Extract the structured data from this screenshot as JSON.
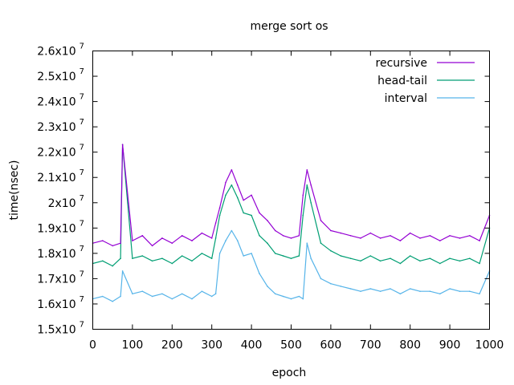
{
  "chart_data": {
    "type": "line",
    "title": "merge sort os",
    "xlabel": "epoch",
    "ylabel": "time(nsec)",
    "xlim": [
      0,
      1000
    ],
    "ylim": [
      15000000,
      26000000
    ],
    "grid": false,
    "legend_position": "top-right",
    "x_ticks": [
      "0",
      "100",
      "200",
      "300",
      "400",
      "500",
      "600",
      "700",
      "800",
      "900",
      "1000"
    ],
    "y_ticks": [
      {
        "mantissa": "1.5x10",
        "exp": "7",
        "value": 15000000
      },
      {
        "mantissa": "1.6x10",
        "exp": "7",
        "value": 16000000
      },
      {
        "mantissa": "1.7x10",
        "exp": "7",
        "value": 17000000
      },
      {
        "mantissa": "1.8x10",
        "exp": "7",
        "value": 18000000
      },
      {
        "mantissa": "1.9x10",
        "exp": "7",
        "value": 19000000
      },
      {
        "mantissa": "2x10",
        "exp": "7",
        "value": 20000000
      },
      {
        "mantissa": "2.1x10",
        "exp": "7",
        "value": 21000000
      },
      {
        "mantissa": "2.2x10",
        "exp": "7",
        "value": 22000000
      },
      {
        "mantissa": "2.3x10",
        "exp": "7",
        "value": 23000000
      },
      {
        "mantissa": "2.4x10",
        "exp": "7",
        "value": 24000000
      },
      {
        "mantissa": "2.5x10",
        "exp": "7",
        "value": 25000000
      },
      {
        "mantissa": "2.6x10",
        "exp": "7",
        "value": 26000000
      }
    ],
    "x": [
      0,
      25,
      50,
      70,
      75,
      100,
      125,
      150,
      175,
      200,
      225,
      250,
      275,
      300,
      310,
      320,
      335,
      350,
      365,
      380,
      400,
      420,
      440,
      460,
      480,
      500,
      520,
      530,
      540,
      550,
      575,
      600,
      625,
      650,
      675,
      700,
      725,
      750,
      775,
      800,
      825,
      850,
      875,
      900,
      925,
      950,
      975,
      1000
    ],
    "series": [
      {
        "name": "recursive",
        "color": "#9400d3",
        "values": [
          18400000,
          18500000,
          18300000,
          18400000,
          22300000,
          18500000,
          18700000,
          18300000,
          18600000,
          18400000,
          18700000,
          18500000,
          18800000,
          18600000,
          19200000,
          19800000,
          20800000,
          21300000,
          20700000,
          20100000,
          20300000,
          19600000,
          19300000,
          18900000,
          18700000,
          18600000,
          18700000,
          20300000,
          21300000,
          20700000,
          19300000,
          18900000,
          18800000,
          18700000,
          18600000,
          18800000,
          18600000,
          18700000,
          18500000,
          18800000,
          18600000,
          18700000,
          18500000,
          18700000,
          18600000,
          18700000,
          18500000,
          19500000
        ]
      },
      {
        "name": "head-tail",
        "color": "#009e73",
        "values": [
          17600000,
          17700000,
          17500000,
          17800000,
          22300000,
          17800000,
          17900000,
          17700000,
          17800000,
          17600000,
          17900000,
          17700000,
          18000000,
          17800000,
          18600000,
          19500000,
          20300000,
          20700000,
          20200000,
          19600000,
          19500000,
          18700000,
          18400000,
          18000000,
          17900000,
          17800000,
          17900000,
          19500000,
          20700000,
          20000000,
          18400000,
          18100000,
          17900000,
          17800000,
          17700000,
          17900000,
          17700000,
          17800000,
          17600000,
          17900000,
          17700000,
          17800000,
          17600000,
          17800000,
          17700000,
          17800000,
          17600000,
          19000000
        ]
      },
      {
        "name": "interval",
        "color": "#56b4e9",
        "values": [
          16200000,
          16300000,
          16100000,
          16300000,
          17300000,
          16400000,
          16500000,
          16300000,
          16400000,
          16200000,
          16400000,
          16200000,
          16500000,
          16300000,
          16400000,
          18000000,
          18500000,
          18900000,
          18500000,
          17900000,
          18000000,
          17200000,
          16700000,
          16400000,
          16300000,
          16200000,
          16300000,
          16200000,
          18400000,
          17800000,
          17000000,
          16800000,
          16700000,
          16600000,
          16500000,
          16600000,
          16500000,
          16600000,
          16400000,
          16600000,
          16500000,
          16500000,
          16400000,
          16600000,
          16500000,
          16500000,
          16400000,
          17300000
        ]
      }
    ]
  }
}
